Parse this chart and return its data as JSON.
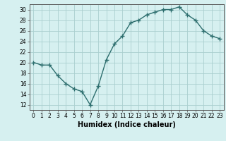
{
  "x": [
    0,
    1,
    2,
    3,
    4,
    5,
    6,
    7,
    8,
    9,
    10,
    11,
    12,
    13,
    14,
    15,
    16,
    17,
    18,
    19,
    20,
    21,
    22,
    23
  ],
  "y": [
    20,
    19.5,
    19.5,
    17.5,
    16,
    15,
    14.5,
    12,
    15.5,
    20.5,
    23.5,
    25,
    27.5,
    28,
    29,
    29.5,
    30,
    30,
    30.5,
    29,
    28,
    26,
    25,
    24.5
  ],
  "line_color": "#2d6e6e",
  "marker": "+",
  "marker_size": 4,
  "bg_color": "#d6f0f0",
  "grid_color": "#aacfcf",
  "xlabel": "Humidex (Indice chaleur)",
  "xlim": [
    -0.5,
    23.5
  ],
  "ylim": [
    11,
    31
  ],
  "yticks": [
    12,
    14,
    16,
    18,
    20,
    22,
    24,
    26,
    28,
    30
  ],
  "xticks": [
    0,
    1,
    2,
    3,
    4,
    5,
    6,
    7,
    8,
    9,
    10,
    11,
    12,
    13,
    14,
    15,
    16,
    17,
    18,
    19,
    20,
    21,
    22,
    23
  ],
  "tick_label_fontsize": 5.5,
  "xlabel_fontsize": 7.0,
  "line_width": 1.0
}
